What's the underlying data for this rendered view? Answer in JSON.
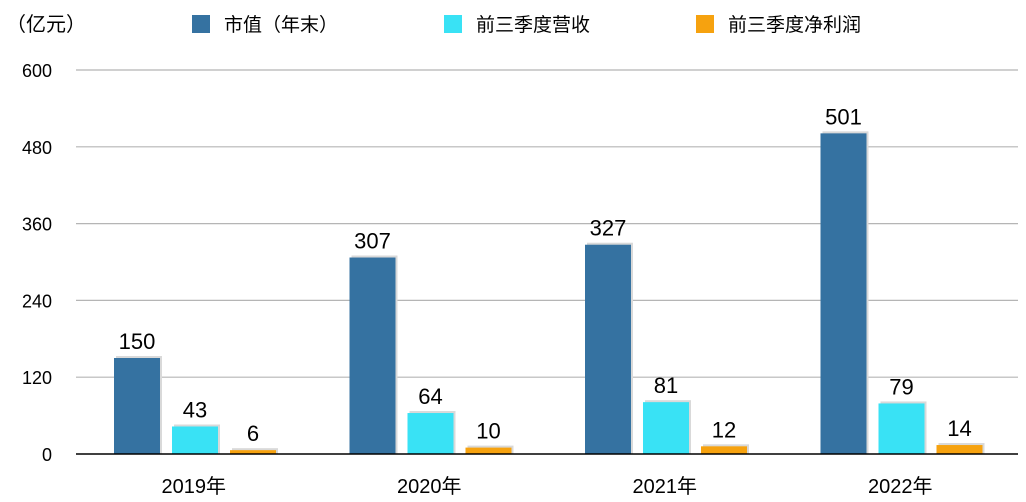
{
  "chart_data": {
    "type": "bar",
    "unit_label": "（亿元）",
    "categories": [
      "2019年",
      "2020年",
      "2021年",
      "2022年"
    ],
    "series": [
      {
        "name": "市值（年末）",
        "color": "#3572a1",
        "values": [
          150,
          307,
          327,
          501
        ]
      },
      {
        "name": "前三季度营收",
        "color": "#39e2f5",
        "values": [
          43,
          64,
          81,
          79
        ]
      },
      {
        "name": "前三季度净利润",
        "color": "#f6a20f",
        "values": [
          6,
          10,
          12,
          14
        ]
      }
    ],
    "yticks": [
      "0",
      "120",
      "240",
      "360",
      "480",
      "600"
    ],
    "ylim": [
      0,
      600
    ],
    "grid": true,
    "legend_position": "top"
  }
}
